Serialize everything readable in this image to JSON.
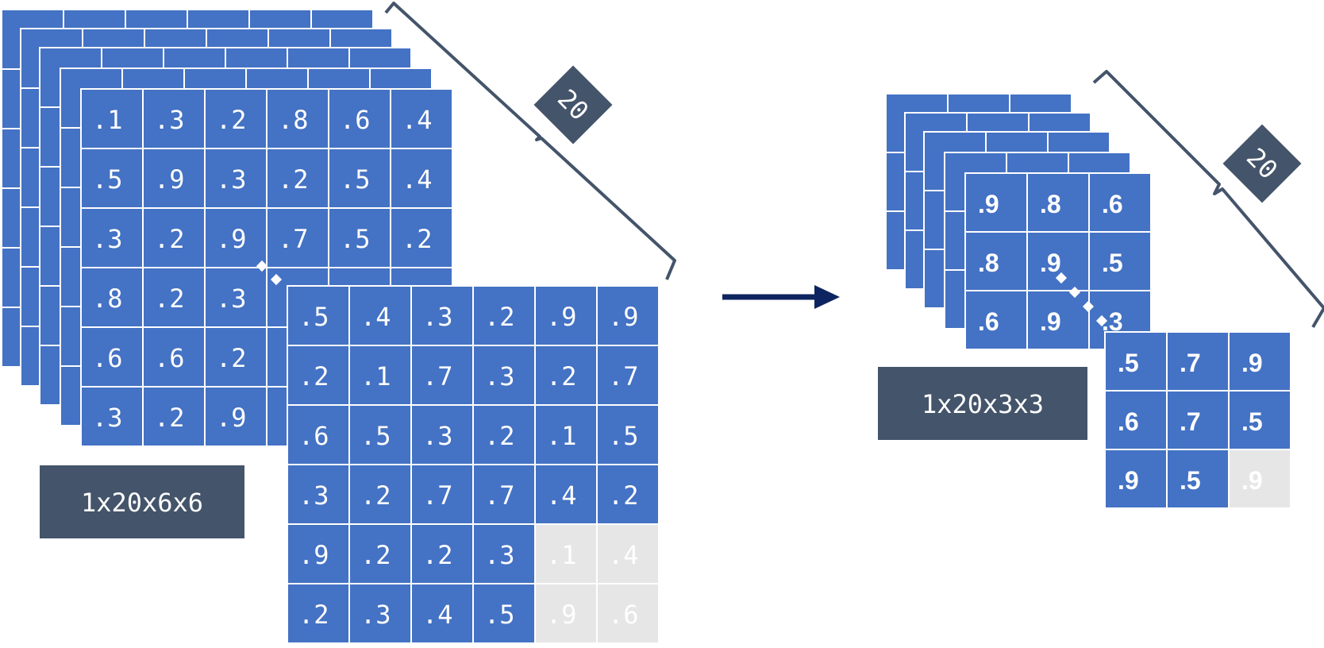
{
  "colors": {
    "cell": "#4472c4",
    "highlight": "#e6e6e6",
    "label_bg": "#44546a",
    "arrow": "#0e2461",
    "dark_text": "#0e2461"
  },
  "left_block": {
    "label": "1x20x6x6",
    "depth_label": "20",
    "back_matrix": [
      [
        ".1",
        ".3",
        ".2",
        ".8",
        ".6",
        ".4"
      ],
      [
        ".5",
        ".9",
        ".3",
        ".2",
        ".5",
        ".4"
      ],
      [
        ".3",
        ".2",
        ".9",
        ".7",
        ".5",
        ".2"
      ],
      [
        ".8",
        ".2",
        ".3",
        "",
        "",
        ""
      ],
      [
        ".6",
        ".6",
        ".2",
        "",
        "",
        ""
      ],
      [
        ".3",
        ".2",
        ".9",
        "",
        "",
        ""
      ]
    ],
    "front_matrix": [
      [
        ".5",
        ".4",
        ".3",
        ".2",
        ".9",
        ".9"
      ],
      [
        ".2",
        ".1",
        ".7",
        ".3",
        ".2",
        ".7"
      ],
      [
        ".6",
        ".5",
        ".3",
        ".2",
        ".1",
        ".5"
      ],
      [
        ".3",
        ".2",
        ".7",
        ".7",
        ".4",
        ".2"
      ],
      [
        ".9",
        ".2",
        ".2",
        ".3",
        ".1",
        ".4"
      ],
      [
        ".2",
        ".3",
        ".4",
        ".5",
        ".9",
        ".6"
      ]
    ],
    "front_highlight": [
      [
        4,
        4
      ],
      [
        4,
        5
      ],
      [
        5,
        4
      ],
      [
        5,
        5
      ]
    ]
  },
  "right_block": {
    "label": "1x20x3x3",
    "depth_label": "20",
    "back_matrix": [
      [
        ".9",
        ".8",
        ".6"
      ],
      [
        ".8",
        ".9",
        ".5"
      ],
      [
        ".6",
        ".9",
        ".3"
      ]
    ],
    "front_matrix": [
      [
        ".5",
        ".7",
        ".9"
      ],
      [
        ".6",
        ".7",
        ".5"
      ],
      [
        ".9",
        ".5",
        ".9"
      ]
    ],
    "front_highlight": [
      [
        2,
        2
      ]
    ]
  }
}
